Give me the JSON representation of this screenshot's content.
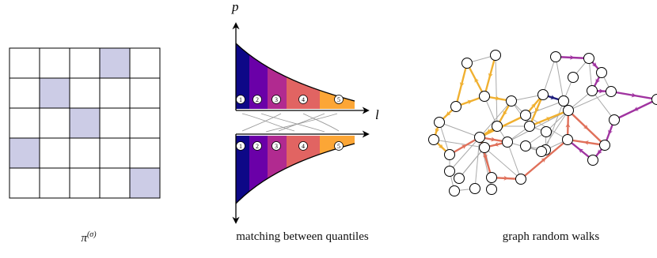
{
  "permutation": {
    "size": 5,
    "highlighted_cells": [
      [
        0,
        3
      ],
      [
        1,
        1
      ],
      [
        2,
        2
      ],
      [
        3,
        0
      ],
      [
        4,
        4
      ]
    ],
    "highlight_color": "#cccce6",
    "caption_base": "π",
    "caption_sup": "(σ)"
  },
  "matching": {
    "axis_p": "p",
    "axis_l": "l",
    "quantile_labels": [
      "1",
      "2",
      "3",
      "4",
      "5"
    ],
    "band_colors": [
      "#0d0887",
      "#6a00a8",
      "#b12a90",
      "#e16462",
      "#fca636"
    ],
    "caption": "matching between quantiles"
  },
  "graph": {
    "caption": "graph random walks",
    "walk_colors": {
      "navy": "#1a1a7a",
      "purple": "#a033a0",
      "orange": "#f0b030",
      "salmon": "#e0705a"
    },
    "edge_color": "#aaaaaa"
  }
}
